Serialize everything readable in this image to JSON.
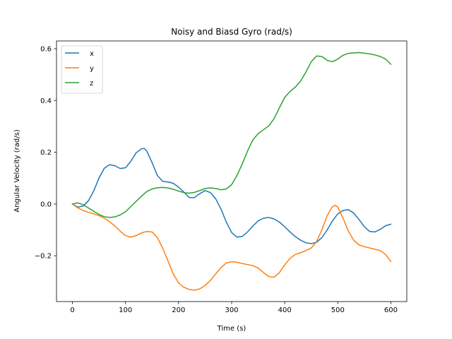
{
  "chart_data": {
    "type": "line",
    "title": "Noisy and Biasd Gyro (rad/s)",
    "xlabel": "Time (s)",
    "ylabel": "Angular Velocity (rad/s)",
    "xlim": [
      -30,
      630
    ],
    "ylim": [
      -0.377,
      0.63
    ],
    "xticks": [
      0,
      100,
      200,
      300,
      400,
      500,
      600
    ],
    "yticks": [
      -0.2,
      0.0,
      0.2,
      0.4,
      0.6
    ],
    "ytick_labels": [
      "−0.2",
      "0.0",
      "0.2",
      "0.4",
      "0.6"
    ],
    "grid": false,
    "legend_position": "top-left",
    "series": [
      {
        "name": "x",
        "color": "#1f77b4",
        "x": [
          0,
          10,
          20,
          30,
          40,
          50,
          60,
          70,
          80,
          90,
          100,
          110,
          120,
          130,
          135,
          140,
          150,
          160,
          170,
          180,
          190,
          200,
          210,
          220,
          230,
          240,
          250,
          260,
          270,
          280,
          290,
          300,
          310,
          320,
          330,
          340,
          350,
          360,
          370,
          380,
          390,
          400,
          410,
          420,
          430,
          440,
          450,
          460,
          470,
          480,
          490,
          500,
          510,
          520,
          530,
          540,
          550,
          560,
          570,
          580,
          590,
          600
        ],
        "y": [
          0.0,
          -0.012,
          -0.008,
          0.012,
          0.05,
          0.1,
          0.138,
          0.152,
          0.148,
          0.137,
          0.14,
          0.165,
          0.198,
          0.213,
          0.215,
          0.205,
          0.16,
          0.11,
          0.088,
          0.085,
          0.08,
          0.065,
          0.046,
          0.025,
          0.025,
          0.04,
          0.052,
          0.044,
          0.02,
          -0.02,
          -0.07,
          -0.11,
          -0.128,
          -0.125,
          -0.108,
          -0.085,
          -0.065,
          -0.055,
          -0.052,
          -0.058,
          -0.07,
          -0.088,
          -0.108,
          -0.126,
          -0.14,
          -0.15,
          -0.153,
          -0.148,
          -0.13,
          -0.1,
          -0.065,
          -0.038,
          -0.025,
          -0.022,
          -0.035,
          -0.06,
          -0.088,
          -0.106,
          -0.108,
          -0.098,
          -0.084,
          -0.078
        ]
      },
      {
        "name": "y",
        "color": "#ff7f0e",
        "x": [
          0,
          10,
          20,
          30,
          40,
          50,
          60,
          70,
          80,
          90,
          100,
          110,
          120,
          130,
          140,
          150,
          160,
          170,
          180,
          190,
          200,
          210,
          220,
          230,
          240,
          250,
          260,
          270,
          280,
          290,
          300,
          310,
          320,
          330,
          340,
          350,
          360,
          370,
          380,
          390,
          400,
          410,
          420,
          430,
          440,
          450,
          460,
          470,
          480,
          490,
          495,
          500,
          510,
          520,
          530,
          540,
          550,
          560,
          570,
          580,
          590,
          600
        ],
        "y": [
          0.0,
          -0.015,
          -0.025,
          -0.032,
          -0.038,
          -0.045,
          -0.055,
          -0.068,
          -0.085,
          -0.105,
          -0.122,
          -0.128,
          -0.122,
          -0.112,
          -0.106,
          -0.108,
          -0.13,
          -0.17,
          -0.22,
          -0.27,
          -0.305,
          -0.322,
          -0.33,
          -0.333,
          -0.328,
          -0.315,
          -0.295,
          -0.27,
          -0.245,
          -0.228,
          -0.223,
          -0.225,
          -0.23,
          -0.234,
          -0.238,
          -0.248,
          -0.265,
          -0.28,
          -0.283,
          -0.265,
          -0.235,
          -0.21,
          -0.195,
          -0.188,
          -0.18,
          -0.17,
          -0.145,
          -0.1,
          -0.045,
          -0.01,
          -0.005,
          -0.012,
          -0.055,
          -0.105,
          -0.14,
          -0.158,
          -0.165,
          -0.17,
          -0.175,
          -0.18,
          -0.195,
          -0.222
        ]
      },
      {
        "name": "z",
        "color": "#2ca02c",
        "x": [
          0,
          10,
          20,
          30,
          40,
          50,
          60,
          70,
          80,
          90,
          100,
          110,
          120,
          130,
          140,
          150,
          160,
          170,
          180,
          190,
          200,
          210,
          220,
          230,
          240,
          250,
          260,
          270,
          280,
          290,
          300,
          310,
          320,
          330,
          340,
          350,
          360,
          370,
          380,
          390,
          400,
          410,
          420,
          430,
          440,
          450,
          460,
          470,
          480,
          490,
          500,
          510,
          520,
          530,
          540,
          550,
          560,
          570,
          580,
          590,
          600
        ],
        "y": [
          0.0,
          0.004,
          -0.002,
          -0.015,
          -0.028,
          -0.04,
          -0.049,
          -0.052,
          -0.05,
          -0.042,
          -0.03,
          -0.01,
          0.01,
          0.03,
          0.048,
          0.058,
          0.063,
          0.064,
          0.062,
          0.057,
          0.05,
          0.044,
          0.042,
          0.045,
          0.052,
          0.06,
          0.062,
          0.06,
          0.055,
          0.058,
          0.075,
          0.11,
          0.155,
          0.205,
          0.248,
          0.272,
          0.287,
          0.302,
          0.33,
          0.372,
          0.412,
          0.435,
          0.452,
          0.475,
          0.51,
          0.55,
          0.572,
          0.57,
          0.555,
          0.55,
          0.56,
          0.575,
          0.582,
          0.584,
          0.585,
          0.583,
          0.58,
          0.576,
          0.57,
          0.56,
          0.54
        ]
      }
    ]
  }
}
